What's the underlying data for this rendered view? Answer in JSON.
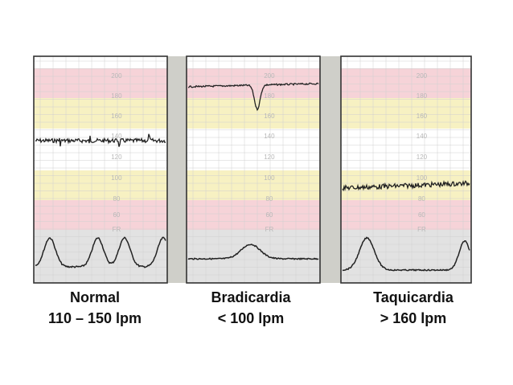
{
  "panels": [
    {
      "title": "Normal",
      "range": "110 – 150 lpm",
      "ticks": [
        "200",
        "180",
        "160",
        "140",
        "120",
        "100",
        "80",
        "60",
        "FR"
      ]
    },
    {
      "title": "Bradicardia",
      "range": "< 100 lpm",
      "ticks": [
        "200",
        "180",
        "160",
        "140",
        "120",
        "100",
        "80",
        "60",
        "FR"
      ]
    },
    {
      "title": "Taquicardia",
      "range": "> 160 lpm",
      "ticks": [
        "200",
        "180",
        "160",
        "140",
        "120",
        "100",
        "80",
        "60",
        "FR"
      ]
    }
  ],
  "colors": {
    "pink_band": "#f6d3d8",
    "yellow_band": "#f7f1c2",
    "white_band": "#ffffff",
    "gray_band": "#e2e2e2",
    "separator": "#cfcfc9",
    "trace": "#222222"
  }
}
